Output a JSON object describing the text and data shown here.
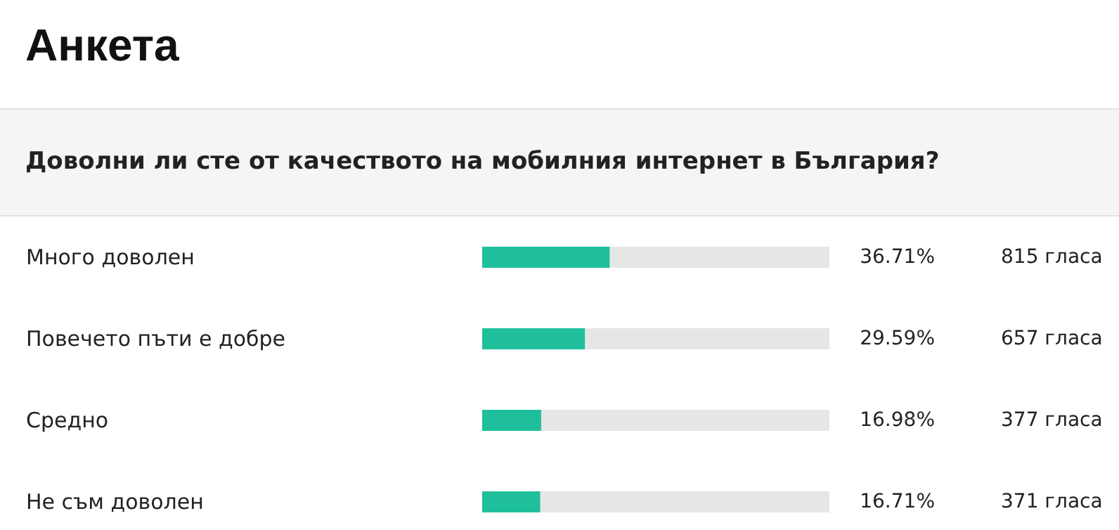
{
  "chart_data": {
    "type": "bar",
    "orientation": "horizontal",
    "title": "Анкета",
    "subtitle": "Доволни ли сте от качеството на мобилния интернет в България?",
    "categories": [
      "Много доволен",
      "Повечето пъти е добре",
      "Средно",
      "Не съм доволен"
    ],
    "values": [
      36.71,
      29.59,
      16.98,
      16.71
    ],
    "value_labels": [
      "36.71%",
      "29.59%",
      "16.98%",
      "16.71%"
    ],
    "color": "#1fbf9c",
    "xlim": [
      0,
      100
    ],
    "tick_labels": "y",
    "annotations": [
      "815 гласа",
      "657 гласа",
      "377 гласа",
      "371 гласа"
    ]
  }
}
